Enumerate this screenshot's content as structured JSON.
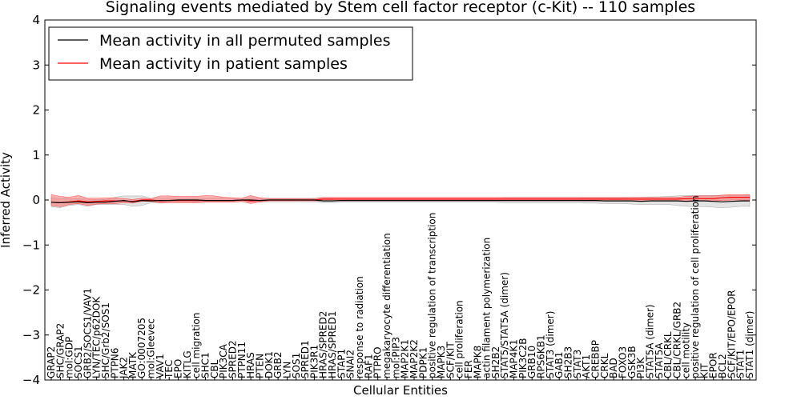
{
  "chart_data": {
    "type": "line",
    "title": "Signaling events mediated by Stem cell factor receptor (c-Kit) -- 110 samples",
    "xlabel": "Cellular Entities",
    "ylabel": "Inferred Activity",
    "ylim": [
      -4,
      4
    ],
    "yticks": [
      -4,
      -3,
      -2,
      -1,
      0,
      1,
      2,
      3,
      4
    ],
    "ytick_labels": [
      "−4",
      "−3",
      "−2",
      "−1",
      "0",
      "1",
      "2",
      "3",
      "4"
    ],
    "legend_position": "top-left",
    "colors": {
      "permuted": "#000000",
      "patient": "#ff0000",
      "permuted_band": "#cccccc",
      "patient_band": "#ff6666"
    },
    "categories": [
      "GRAP2",
      "SHC/GRAP2",
      "mol:GDP",
      "SOCS1",
      "GRB2/SOCS1/VAV1",
      "LYN/TEC/p62DOK",
      "SHC/Grb2/SOS1",
      "PTPN6",
      "JAK2",
      "MATK",
      "GO:0007205",
      "mol:Gleevec",
      "VAV1",
      "TEC",
      "EPO",
      "KITLG",
      "cell migration",
      "SHC1",
      "CBL",
      "PIK3CA",
      "SPRED2",
      "PTPN11",
      "HRAS",
      "PTEN",
      "DOK1",
      "GRB2",
      "LYN",
      "SOS1",
      "SPRED1",
      "PIK3R1",
      "HRAS/SPRED2",
      "HRAS/SPRED1",
      "STAP1",
      "SNAI2",
      "response to radiation",
      "RAF1",
      "PTPRO",
      "megakaryocyte differentiation",
      "mol:PIP3",
      "MAP2K1",
      "MAP2K2",
      "PDPK1",
      "positive regulation of transcription",
      "MAPK3",
      "SCF/KIT",
      "cell proliferation",
      "FER",
      "MAPK8",
      "actin filament polymerization",
      "SH2B2",
      "STAT5/STAT5A (dimer)",
      "MAP4K1",
      "PIK3C2B",
      "GRB10",
      "RPS6KB1",
      "STAT3 (dimer)",
      "GAB1",
      "SH2B3",
      "STAT3",
      "AKT1",
      "CREBBP",
      "CRKL",
      "BAD",
      "FOXO3",
      "GSK3B",
      "PI3K",
      "STAT5A (dimer)",
      "STAT5A",
      "CBL/CRKL",
      "CBL/CRKL/GRB2",
      "cell motility",
      "positive regulation of cell proliferation",
      "KIT",
      "EPOR",
      "BCL2",
      "SCF/KIT/EPO/EPOR",
      "STAT1",
      "STAT1 (dimer)"
    ],
    "series": [
      {
        "name": "Mean activity in all permuted samples",
        "color": "#000000",
        "values": [
          -0.05,
          -0.06,
          -0.05,
          -0.04,
          -0.06,
          -0.05,
          -0.05,
          -0.03,
          -0.01,
          -0.04,
          -0.01,
          -0.02,
          -0.01,
          -0.01,
          0.0,
          0.0,
          0.0,
          -0.01,
          -0.01,
          -0.01,
          -0.01,
          0.0,
          0.0,
          -0.01,
          0.0,
          0.0,
          0.0,
          0.0,
          0.0,
          0.0,
          -0.02,
          -0.02,
          -0.01,
          -0.01,
          -0.01,
          -0.01,
          -0.01,
          -0.01,
          -0.01,
          -0.01,
          -0.01,
          -0.01,
          -0.01,
          -0.01,
          -0.01,
          -0.01,
          -0.01,
          -0.01,
          -0.01,
          -0.01,
          -0.01,
          -0.01,
          -0.01,
          -0.01,
          -0.01,
          -0.01,
          -0.01,
          -0.01,
          -0.01,
          -0.01,
          -0.01,
          -0.02,
          -0.02,
          -0.02,
          -0.02,
          -0.03,
          -0.02,
          -0.02,
          -0.02,
          -0.02,
          -0.03,
          -0.02,
          -0.02,
          -0.03,
          -0.04,
          -0.03,
          -0.02,
          -0.02
        ],
        "lower": [
          -0.15,
          -0.17,
          -0.12,
          -0.1,
          -0.14,
          -0.1,
          -0.1,
          -0.1,
          -0.1,
          -0.14,
          -0.12,
          -0.06,
          -0.06,
          -0.05,
          -0.05,
          -0.05,
          -0.05,
          -0.05,
          -0.05,
          -0.05,
          -0.05,
          -0.04,
          -0.04,
          -0.05,
          -0.04,
          -0.04,
          -0.04,
          -0.04,
          -0.04,
          -0.04,
          -0.06,
          -0.06,
          -0.05,
          -0.05,
          -0.05,
          -0.05,
          -0.05,
          -0.05,
          -0.05,
          -0.05,
          -0.05,
          -0.05,
          -0.05,
          -0.05,
          -0.05,
          -0.05,
          -0.05,
          -0.05,
          -0.05,
          -0.05,
          -0.06,
          -0.06,
          -0.06,
          -0.06,
          -0.06,
          -0.06,
          -0.06,
          -0.06,
          -0.06,
          -0.07,
          -0.07,
          -0.08,
          -0.08,
          -0.08,
          -0.09,
          -0.1,
          -0.1,
          -0.1,
          -0.1,
          -0.12,
          -0.14,
          -0.15,
          -0.15,
          -0.16,
          -0.17,
          -0.16,
          -0.14,
          -0.14
        ],
        "upper": [
          0.05,
          0.03,
          0.03,
          0.03,
          0.02,
          0.01,
          0.01,
          0.06,
          0.09,
          0.09,
          0.09,
          0.04,
          0.04,
          0.04,
          0.04,
          0.04,
          0.04,
          0.04,
          0.04,
          0.04,
          0.04,
          0.04,
          0.04,
          0.04,
          0.04,
          0.04,
          0.04,
          0.04,
          0.04,
          0.04,
          0.03,
          0.03,
          0.03,
          0.03,
          0.03,
          0.03,
          0.03,
          0.03,
          0.03,
          0.03,
          0.03,
          0.03,
          0.03,
          0.03,
          0.03,
          0.03,
          0.03,
          0.03,
          0.03,
          0.03,
          0.04,
          0.04,
          0.04,
          0.04,
          0.04,
          0.04,
          0.04,
          0.04,
          0.04,
          0.05,
          0.05,
          0.05,
          0.05,
          0.05,
          0.06,
          0.06,
          0.07,
          0.07,
          0.08,
          0.09,
          0.1,
          0.1,
          0.1,
          0.1,
          0.1,
          0.1,
          0.1,
          0.1
        ]
      },
      {
        "name": "Mean activity in patient samples",
        "color": "#ff0000",
        "values": [
          -0.05,
          -0.06,
          -0.04,
          -0.02,
          -0.04,
          -0.03,
          -0.02,
          -0.02,
          -0.02,
          -0.03,
          0.0,
          0.0,
          -0.02,
          -0.01,
          -0.01,
          -0.01,
          -0.01,
          -0.01,
          -0.01,
          -0.01,
          -0.01,
          0.0,
          -0.02,
          -0.01,
          0.0,
          0.0,
          0.0,
          0.0,
          0.0,
          0.0,
          0.02,
          0.02,
          0.02,
          0.02,
          0.02,
          0.02,
          0.02,
          0.02,
          0.02,
          0.02,
          0.02,
          0.02,
          0.02,
          0.02,
          0.02,
          0.02,
          0.02,
          0.02,
          0.02,
          0.02,
          0.02,
          0.02,
          0.02,
          0.02,
          0.02,
          0.02,
          0.02,
          0.02,
          0.02,
          0.02,
          0.02,
          0.02,
          0.02,
          0.02,
          0.02,
          0.02,
          0.02,
          0.02,
          0.02,
          0.02,
          0.03,
          0.03,
          0.03,
          0.03,
          0.05,
          0.06,
          0.06,
          0.06
        ],
        "lower": [
          -0.12,
          -0.15,
          -0.1,
          -0.08,
          -0.12,
          -0.09,
          -0.08,
          -0.08,
          -0.06,
          -0.07,
          -0.03,
          -0.03,
          -0.07,
          -0.06,
          -0.06,
          -0.06,
          -0.06,
          -0.05,
          -0.05,
          -0.05,
          -0.05,
          -0.03,
          -0.08,
          -0.04,
          -0.02,
          -0.02,
          -0.02,
          -0.02,
          -0.02,
          -0.02,
          -0.02,
          -0.02,
          -0.02,
          -0.02,
          -0.02,
          -0.02,
          -0.02,
          -0.02,
          -0.02,
          -0.02,
          -0.02,
          -0.02,
          -0.02,
          -0.02,
          -0.02,
          -0.02,
          -0.02,
          -0.02,
          -0.02,
          -0.02,
          -0.02,
          -0.02,
          -0.02,
          -0.02,
          -0.02,
          -0.02,
          -0.02,
          -0.02,
          -0.02,
          -0.02,
          -0.02,
          -0.02,
          -0.02,
          -0.02,
          -0.02,
          -0.02,
          -0.02,
          -0.02,
          -0.02,
          -0.02,
          -0.02,
          -0.02,
          -0.02,
          -0.02,
          -0.01,
          0.0,
          0.0,
          0.0
        ],
        "upper": [
          0.12,
          0.08,
          0.06,
          0.1,
          0.04,
          0.04,
          0.05,
          0.05,
          0.03,
          0.01,
          0.04,
          0.03,
          0.09,
          0.09,
          0.08,
          0.08,
          0.08,
          0.1,
          0.09,
          0.06,
          0.05,
          0.04,
          0.1,
          0.05,
          0.03,
          0.03,
          0.03,
          0.03,
          0.03,
          0.03,
          0.06,
          0.06,
          0.06,
          0.06,
          0.06,
          0.06,
          0.06,
          0.06,
          0.06,
          0.06,
          0.06,
          0.06,
          0.06,
          0.06,
          0.06,
          0.06,
          0.06,
          0.06,
          0.06,
          0.06,
          0.06,
          0.06,
          0.06,
          0.06,
          0.06,
          0.06,
          0.06,
          0.06,
          0.06,
          0.06,
          0.06,
          0.06,
          0.06,
          0.06,
          0.06,
          0.06,
          0.06,
          0.06,
          0.06,
          0.06,
          0.08,
          0.09,
          0.09,
          0.09,
          0.11,
          0.12,
          0.12,
          0.12
        ]
      }
    ]
  }
}
